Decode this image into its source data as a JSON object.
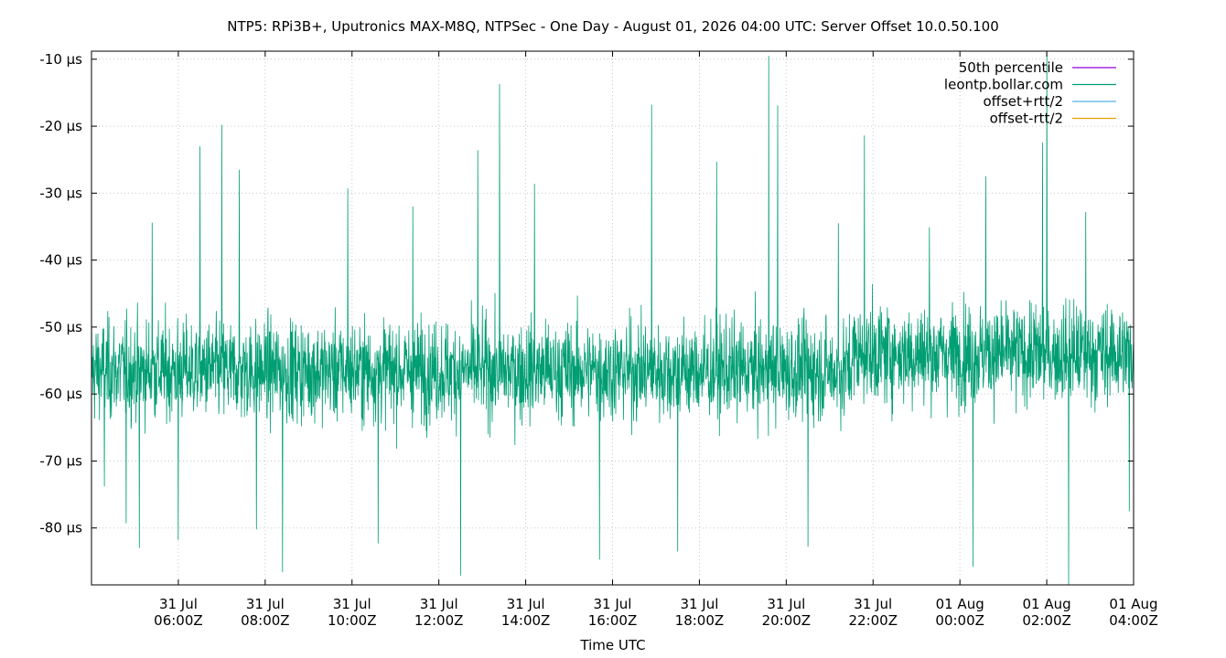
{
  "chart_data": {
    "type": "line",
    "title": "NTP5: RPi3B+, Uputronics MAX-M8Q, NTPSec - One Day - August 01, 2026 04:00 UTC: Server Offset 10.0.50.100",
    "xlabel": "Time UTC",
    "ylabel": "",
    "ylim": [
      -88.5,
      -8.8
    ],
    "xlim_hours": [
      -4.0,
      20.0
    ],
    "y_ticks": [
      -10,
      -20,
      -30,
      -40,
      -50,
      -60,
      -70,
      -80
    ],
    "y_tick_labels": [
      "-10 µs",
      "-20 µs",
      "-30 µs",
      "-40 µs",
      "-50 µs",
      "-60 µs",
      "-70 µs",
      "-80 µs"
    ],
    "x_ticks": [
      {
        "hour": -2,
        "line1": "31 Jul",
        "line2": "06:00Z"
      },
      {
        "hour": 0,
        "line1": "31 Jul",
        "line2": "08:00Z"
      },
      {
        "hour": 2,
        "line1": "31 Jul",
        "line2": "10:00Z"
      },
      {
        "hour": 4,
        "line1": "31 Jul",
        "line2": "12:00Z"
      },
      {
        "hour": 6,
        "line1": "31 Jul",
        "line2": "14:00Z"
      },
      {
        "hour": 8,
        "line1": "31 Jul",
        "line2": "16:00Z"
      },
      {
        "hour": 10,
        "line1": "31 Jul",
        "line2": "18:00Z"
      },
      {
        "hour": 12,
        "line1": "31 Jul",
        "line2": "20:00Z"
      },
      {
        "hour": 14,
        "line1": "31 Jul",
        "line2": "22:00Z"
      },
      {
        "hour": 16,
        "line1": "01 Aug",
        "line2": "00:00Z"
      },
      {
        "hour": 18,
        "line1": "01 Aug",
        "line2": "02:00Z"
      },
      {
        "hour": 20,
        "line1": "01 Aug",
        "line2": "04:00Z"
      }
    ],
    "grid": true,
    "legend_position": "top-right",
    "series": [
      {
        "name": "50th percentile",
        "color": "#9400d3",
        "values": []
      },
      {
        "name": "leontp.bollar.com",
        "color": "#009e73",
        "baseline": -56.5,
        "spikes": [
          [
            -4.0,
            -45.3
          ],
          [
            -3.7,
            -73.8
          ],
          [
            -3.2,
            -79.3
          ],
          [
            -2.9,
            -83.0
          ],
          [
            -2.6,
            -34.4
          ],
          [
            -2.0,
            -81.8
          ],
          [
            -1.5,
            -23.0
          ],
          [
            -1.0,
            -19.8
          ],
          [
            -0.6,
            -26.5
          ],
          [
            -0.2,
            -80.2
          ],
          [
            0.4,
            -86.6
          ],
          [
            1.9,
            -29.3
          ],
          [
            2.6,
            -82.3
          ],
          [
            3.4,
            -32.0
          ],
          [
            4.5,
            -87.1
          ],
          [
            4.9,
            -23.6
          ],
          [
            5.4,
            -13.7
          ],
          [
            6.2,
            -28.6
          ],
          [
            7.7,
            -84.7
          ],
          [
            8.9,
            -16.8
          ],
          [
            9.5,
            -83.5
          ],
          [
            10.4,
            -25.3
          ],
          [
            11.6,
            -9.5
          ],
          [
            11.8,
            -16.9
          ],
          [
            12.5,
            -82.8
          ],
          [
            13.2,
            -34.5
          ],
          [
            13.8,
            -21.4
          ],
          [
            15.3,
            -35.1
          ],
          [
            16.3,
            -85.8
          ],
          [
            16.6,
            -27.5
          ],
          [
            17.9,
            -22.4
          ],
          [
            18.0,
            -9.0
          ],
          [
            18.5,
            -88.5
          ],
          [
            18.9,
            -32.8
          ],
          [
            19.9,
            -77.5
          ]
        ]
      },
      {
        "name": "offset+rtt/2",
        "color": "#56b4e9",
        "values": []
      },
      {
        "name": "offset-rtt/2",
        "color": "#e69f00",
        "values": []
      }
    ]
  }
}
